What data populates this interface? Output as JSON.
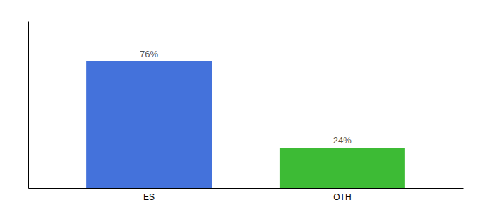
{
  "chart_data": {
    "type": "bar",
    "categories": [
      "ES",
      "OTH"
    ],
    "values": [
      76,
      24
    ],
    "value_labels": [
      "76%",
      "24%"
    ],
    "colors": [
      "#4472db",
      "#3dbb35"
    ],
    "ylim": [
      0,
      100
    ],
    "data_labels": true,
    "tick_labels": "x",
    "grid": false
  }
}
